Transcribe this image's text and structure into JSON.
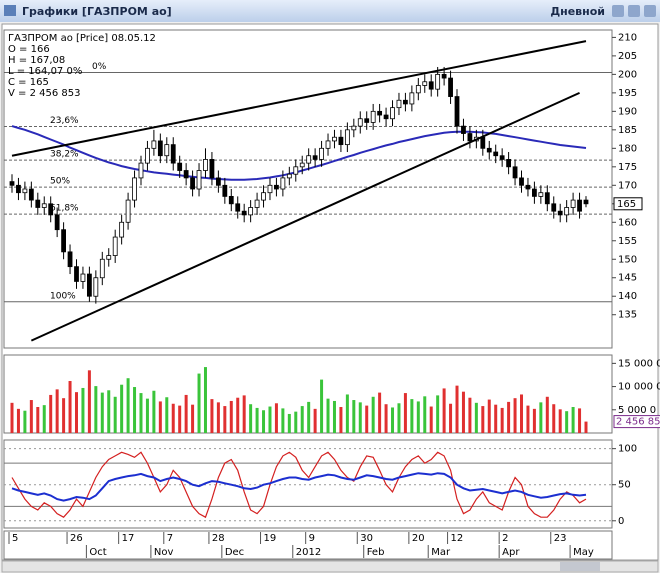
{
  "window": {
    "title": "Графики [ГАЗПРОМ ао]",
    "timeframe": "Дневной"
  },
  "chart_data": [
    {
      "type": "candlestick",
      "info": [
        "ГАЗПРОМ ао [Price] 08.05.12",
        "O = 166",
        "H = 167,08",
        "L = 164,07 0%",
        "C = 165",
        "V = 2 456 853"
      ],
      "open": [
        171,
        170,
        168,
        169,
        166,
        164,
        165,
        162,
        158,
        152,
        148,
        144,
        146,
        140,
        145,
        150,
        151,
        156,
        160,
        166,
        172,
        176,
        180,
        182,
        178,
        181,
        176,
        174,
        172,
        169,
        174,
        177,
        172,
        170,
        167,
        165,
        163,
        162,
        164,
        166,
        168,
        170,
        169,
        172,
        173,
        175,
        176,
        178,
        177,
        180,
        182,
        183,
        181,
        185,
        186,
        188,
        187,
        190,
        189,
        188,
        191,
        193,
        192,
        195,
        197,
        198,
        196,
        200,
        199,
        194,
        186,
        184,
        182,
        183,
        180,
        179,
        178,
        177,
        175,
        172,
        170,
        169,
        167,
        168,
        165,
        163,
        162,
        164,
        166,
        166
      ],
      "high": [
        173,
        172,
        171,
        171,
        168,
        167,
        167,
        164,
        160,
        154,
        150,
        148,
        148,
        147,
        152,
        153,
        158,
        162,
        168,
        174,
        178,
        182,
        185,
        184,
        183,
        183,
        178,
        176,
        174,
        176,
        180,
        179,
        174,
        172,
        169,
        167,
        165,
        166,
        168,
        170,
        172,
        172,
        174,
        175,
        177,
        178,
        180,
        180,
        182,
        184,
        185,
        185,
        187,
        188,
        190,
        190,
        192,
        192,
        191,
        193,
        195,
        195,
        197,
        199,
        200,
        200,
        202,
        202,
        201,
        196,
        188,
        186,
        185,
        185,
        182,
        181,
        180,
        179,
        177,
        174,
        172,
        171,
        170,
        170,
        167,
        165,
        166,
        168,
        168,
        167.08
      ],
      "low": [
        168,
        166,
        166,
        164,
        162,
        162,
        160,
        156,
        150,
        146,
        142,
        142,
        138.5,
        138,
        143,
        148,
        149,
        154,
        158,
        164,
        170,
        174,
        178,
        176,
        176,
        174,
        172,
        170,
        167,
        167,
        172,
        170,
        168,
        165,
        163,
        161,
        160,
        160,
        162,
        164,
        166,
        167,
        167,
        170,
        171,
        173,
        174,
        175,
        175,
        178,
        180,
        179,
        179,
        183,
        184,
        185,
        185,
        187,
        186,
        186,
        189,
        190,
        190,
        193,
        195,
        194,
        194,
        197,
        192,
        184,
        182,
        180,
        180,
        178,
        177,
        176,
        175,
        173,
        170,
        168,
        167,
        165,
        165,
        163,
        161,
        160,
        160,
        162,
        161,
        164.07
      ],
      "close": [
        170,
        168,
        169,
        166,
        164,
        165,
        162,
        158,
        152,
        148,
        144,
        146,
        140,
        145,
        150,
        151,
        156,
        160,
        166,
        172,
        176,
        180,
        182,
        178,
        181,
        176,
        174,
        172,
        169,
        174,
        177,
        172,
        170,
        167,
        165,
        163,
        162,
        164,
        166,
        168,
        170,
        169,
        172,
        173,
        175,
        176,
        178,
        177,
        180,
        182,
        183,
        181,
        185,
        186,
        188,
        187,
        190,
        189,
        188,
        191,
        193,
        192,
        195,
        197,
        198,
        196,
        200,
        199,
        194,
        186,
        184,
        182,
        183,
        180,
        179,
        178,
        177,
        175,
        172,
        170,
        169,
        167,
        168,
        165,
        163,
        162,
        164,
        166,
        163,
        165
      ],
      "series": [
        {
          "color": "#2a2ab8",
          "values": [
            186,
            185.5,
            185,
            184.4,
            183.8,
            183.1,
            182.4,
            181.7,
            181,
            180.2,
            179.5,
            178.8,
            178.1,
            177.4,
            176.8,
            176.2,
            175.7,
            175.2,
            174.8,
            174.4,
            174.1,
            173.8,
            173.5,
            173.3,
            173.1,
            172.9,
            172.7,
            172.5,
            172.3,
            172.1,
            172,
            171.8,
            171.7,
            171.6,
            171.5,
            171.5,
            171.5,
            171.6,
            171.7,
            171.9,
            172.1,
            172.4,
            172.7,
            173.1,
            173.5,
            174,
            174.5,
            175,
            175.5,
            176,
            176.6,
            177.1,
            177.7,
            178.2,
            178.8,
            179.3,
            179.8,
            180.3,
            180.8,
            181.2,
            181.7,
            182.1,
            182.5,
            182.9,
            183.3,
            183.6,
            183.9,
            184.2,
            184.4,
            184.5,
            184.5,
            184.5,
            184.4,
            184.3,
            184.1,
            183.9,
            183.6,
            183.3,
            183,
            182.7,
            182.4,
            182.1,
            181.8,
            181.5,
            181.2,
            180.9,
            180.7,
            180.5,
            180.3,
            180.1
          ]
        }
      ],
      "trendlines": [
        {
          "x": [
            0,
            89
          ],
          "y": [
            178,
            209
          ]
        },
        {
          "x": [
            3,
            88
          ],
          "y": [
            128,
            195
          ]
        }
      ],
      "levels": [
        {
          "value": 200.5,
          "label": "0%"
        },
        {
          "value": 185.9,
          "label": "23,6%"
        },
        {
          "value": 176.8,
          "label": "38,2%"
        },
        {
          "value": 169.5,
          "label": "50%"
        },
        {
          "value": 162.2,
          "label": "61,8%"
        },
        {
          "value": 138.5,
          "label": "100%"
        }
      ],
      "ylim": [
        126,
        212
      ],
      "yticks": [
        135,
        140,
        145,
        150,
        155,
        160,
        165,
        170,
        175,
        180,
        185,
        190,
        195,
        200,
        205,
        210
      ]
    },
    {
      "type": "bar",
      "colors": {
        "up": "#3ac43a",
        "down": "#e03030"
      },
      "values": [
        6500000,
        5200000,
        4800000,
        7100000,
        5600000,
        6000000,
        8200000,
        9400000,
        7500000,
        11200000,
        8800000,
        9700000,
        13500000,
        10100000,
        8700000,
        9200000,
        7800000,
        10400000,
        11800000,
        9900000,
        8600000,
        7400000,
        9100000,
        6800000,
        7700000,
        6300000,
        5900000,
        8200000,
        6100000,
        12800000,
        14200000,
        7300000,
        6600000,
        5800000,
        6900000,
        7600000,
        8100000,
        6200000,
        5400000,
        4900000,
        5700000,
        6400000,
        5300000,
        4100000,
        4600000,
        5800000,
        6700000,
        5200000,
        11500000,
        7400000,
        6900000,
        5600000,
        8300000,
        7100000,
        6600000,
        5900000,
        7800000,
        8700000,
        6200000,
        5500000,
        6400000,
        8600000,
        7300000,
        6800000,
        7900000,
        5700000,
        8100000,
        9600000,
        6300000,
        10200000,
        8900000,
        7600000,
        6500000,
        5800000,
        7200000,
        6100000,
        5400000,
        6700000,
        7500000,
        8300000,
        5900000,
        5200000,
        6600000,
        7800000,
        6200000,
        5100000,
        4700000,
        5600000,
        5300000,
        2456853
      ],
      "last_label": "2 456 85",
      "ylim": [
        0,
        16800000
      ],
      "yticks": [
        {
          "value": 5000000,
          "label": "5 000 0"
        },
        {
          "value": 10000000,
          "label": "10 000 0"
        },
        {
          "value": 15000000,
          "label": "15 000 0"
        }
      ]
    },
    {
      "type": "line",
      "series": [
        {
          "color": "#d42020",
          "values": [
            60,
            45,
            30,
            20,
            15,
            25,
            20,
            10,
            5,
            15,
            30,
            20,
            40,
            60,
            75,
            85,
            90,
            95,
            92,
            88,
            95,
            80,
            60,
            40,
            50,
            70,
            60,
            40,
            20,
            10,
            5,
            30,
            60,
            80,
            85,
            70,
            40,
            15,
            10,
            20,
            50,
            75,
            90,
            95,
            88,
            70,
            60,
            75,
            90,
            95,
            85,
            70,
            60,
            55,
            75,
            90,
            88,
            70,
            50,
            40,
            60,
            75,
            85,
            90,
            80,
            85,
            95,
            90,
            70,
            30,
            10,
            15,
            30,
            40,
            25,
            20,
            15,
            40,
            60,
            50,
            20,
            10,
            5,
            5,
            15,
            30,
            40,
            35,
            25,
            30
          ]
        },
        {
          "color": "#1c2fd0",
          "values": [
            45,
            42,
            40,
            38,
            36,
            38,
            35,
            30,
            28,
            30,
            33,
            32,
            30,
            35,
            45,
            55,
            58,
            60,
            62,
            63,
            65,
            62,
            60,
            55,
            58,
            60,
            58,
            55,
            50,
            48,
            52,
            55,
            54,
            52,
            50,
            48,
            45,
            44,
            46,
            50,
            52,
            55,
            58,
            60,
            60,
            58,
            57,
            60,
            62,
            64,
            63,
            60,
            58,
            57,
            60,
            63,
            62,
            60,
            58,
            57,
            60,
            62,
            64,
            66,
            65,
            64,
            66,
            65,
            60,
            50,
            45,
            42,
            43,
            44,
            42,
            40,
            38,
            40,
            42,
            40,
            36,
            34,
            32,
            33,
            35,
            37,
            38,
            36,
            35,
            36
          ]
        }
      ],
      "hlines": [
        20,
        80
      ],
      "ylim": [
        -10,
        112
      ],
      "yticks": [
        0,
        50,
        100
      ],
      "categories": [
        "5",
        null,
        null,
        null,
        null,
        null,
        null,
        null,
        null,
        "26",
        null,
        null,
        null,
        null,
        null,
        null,
        null,
        "17",
        null,
        null,
        null,
        null,
        null,
        null,
        "7",
        null,
        null,
        null,
        null,
        null,
        null,
        "28",
        null,
        null,
        null,
        null,
        null,
        null,
        null,
        "19",
        null,
        null,
        null,
        null,
        null,
        null,
        "9",
        null,
        null,
        null,
        null,
        null,
        null,
        null,
        "30",
        null,
        null,
        null,
        null,
        null,
        null,
        null,
        "20",
        null,
        null,
        null,
        null,
        null,
        "12",
        null,
        null,
        null,
        null,
        null,
        null,
        null,
        "2",
        null,
        null,
        null,
        null,
        null,
        null,
        null,
        "23",
        null,
        null,
        null,
        null,
        null
      ],
      "months": [
        null,
        null,
        null,
        null,
        null,
        null,
        null,
        null,
        null,
        null,
        null,
        null,
        "Oct",
        null,
        null,
        null,
        null,
        null,
        null,
        null,
        null,
        null,
        "Nov",
        null,
        null,
        null,
        null,
        null,
        null,
        null,
        null,
        null,
        null,
        "Dec",
        null,
        null,
        null,
        null,
        null,
        null,
        null,
        null,
        null,
        null,
        "2012",
        null,
        null,
        null,
        null,
        null,
        null,
        null,
        null,
        null,
        null,
        "Feb",
        null,
        null,
        null,
        null,
        null,
        null,
        null,
        null,
        null,
        "Mar",
        null,
        null,
        null,
        null,
        null,
        null,
        null,
        null,
        null,
        null,
        "Apr",
        null,
        null,
        null,
        null,
        null,
        null,
        null,
        null,
        null,
        null,
        "May",
        null,
        null
      ]
    }
  ]
}
